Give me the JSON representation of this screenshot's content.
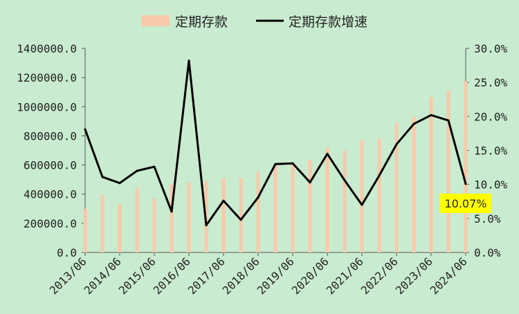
{
  "chart_data": {
    "type": "bar+line",
    "background_color": "#c9ebcf",
    "legend": {
      "position": "top",
      "bar_label": "定期存款",
      "line_label": "定期存款增速"
    },
    "x_tick_labels": [
      "2013/06",
      "2014/06",
      "2015/06",
      "2016/06",
      "2017/06",
      "2018/06",
      "2019/06",
      "2020/06",
      "2021/06",
      "2022/06",
      "2023/06",
      "2024/06"
    ],
    "categories": [
      "2013/06",
      "2013/12",
      "2014/06",
      "2014/12",
      "2015/06",
      "2015/12",
      "2016/06",
      "2016/12",
      "2017/06",
      "2017/12",
      "2018/06",
      "2018/12",
      "2019/06",
      "2019/12",
      "2020/06",
      "2020/12",
      "2021/06",
      "2021/12",
      "2022/06",
      "2022/12",
      "2023/06",
      "2023/12",
      "2024/06"
    ],
    "left_axis": {
      "ylim": [
        0,
        1400000
      ],
      "ticks": [
        "0.0",
        "200000.0",
        "400000.0",
        "600000.0",
        "800000.0",
        "1000000.0",
        "1200000.0",
        "1400000.0"
      ]
    },
    "right_axis": {
      "ylim": [
        0,
        30
      ],
      "ticks": [
        "0.0%",
        "5.0%",
        "10.0%",
        "15.0%",
        "20.0%",
        "25.0%",
        "30.0%"
      ]
    },
    "series": [
      {
        "name": "定期存款",
        "type": "bar",
        "axis": "left",
        "color": "#f8c9aa",
        "values": [
          300000,
          395000,
          330000,
          440000,
          370000,
          470000,
          480000,
          490000,
          510000,
          510000,
          555000,
          600000,
          615000,
          635000,
          720000,
          700000,
          770000,
          780000,
          890000,
          930000,
          1065000,
          1110000,
          1175000
        ]
      },
      {
        "name": "定期存款增速",
        "type": "line",
        "axis": "right",
        "color": "#000000",
        "values": [
          18.1,
          11.1,
          10.2,
          12.0,
          12.6,
          6.0,
          28.2,
          4.0,
          7.6,
          4.8,
          8.1,
          13.0,
          13.1,
          10.3,
          14.5,
          10.6,
          7.0,
          11.3,
          15.9,
          18.9,
          20.2,
          19.4,
          10.07
        ]
      }
    ],
    "annotation": {
      "text": "10.07%",
      "background": "#ffff00"
    }
  }
}
